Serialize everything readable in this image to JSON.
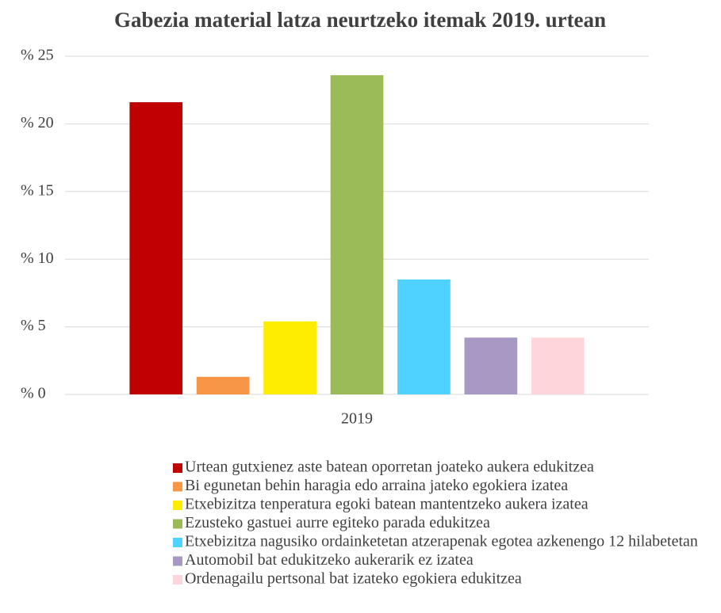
{
  "chart_data": {
    "type": "bar",
    "title": "Gabezia material latza neurtzeko itemak 2019. urtean",
    "categories": [
      "2019"
    ],
    "series": [
      {
        "name": "Urtean gutxienez aste batean oporretan joateko aukera edukitzea",
        "color": "#c00000",
        "values": [
          21.6
        ]
      },
      {
        "name": "Bi egunetan behin haragia edo arraina jateko egokiera izatea",
        "color": "#f79646",
        "values": [
          1.3
        ]
      },
      {
        "name": "Etxebizitza tenperatura egoki batean mantentzeko aukera izatea",
        "color": "#ffed00",
        "values": [
          5.4
        ]
      },
      {
        "name": "Ezusteko gastuei aurre egiteko parada edukitzea",
        "color": "#9bbb59",
        "values": [
          23.6
        ]
      },
      {
        "name": "Etxebizitza nagusiko ordainketetan atzerapenak egotea azkenengo 12 hilabetetan",
        "color": "#4fd2ff",
        "values": [
          8.5
        ]
      },
      {
        "name": "Automobil bat edukitzeko aukerarik ez izatea",
        "color": "#a898c4",
        "values": [
          4.2
        ]
      },
      {
        "name": "Ordenagailu pertsonal bat izateko egokiera edukitzea",
        "color": "#ffd5dc",
        "values": [
          4.2
        ]
      }
    ],
    "ylim": [
      0,
      25
    ],
    "yticks": [
      {
        "value": 0,
        "label": "% 0"
      },
      {
        "value": 5,
        "label": "% 5"
      },
      {
        "value": 10,
        "label": "% 10"
      },
      {
        "value": 15,
        "label": "% 15"
      },
      {
        "value": 20,
        "label": "% 20"
      },
      {
        "value": 25,
        "label": "% 25"
      }
    ],
    "grid": true,
    "legend": "bottom"
  }
}
